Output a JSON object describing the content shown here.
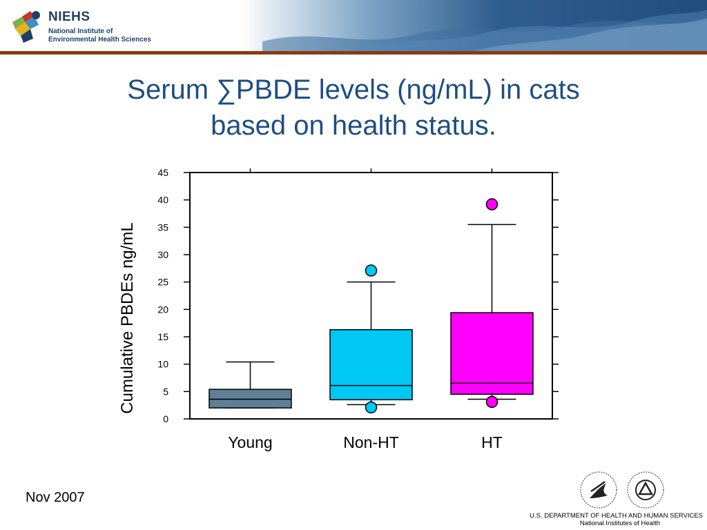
{
  "header": {
    "org_short": "NIEHS",
    "org_full": "National Institute of\nEnvironmental Health Sciences",
    "logo_icon": "niehs-logo-icon",
    "accent_color": "#1d4e82",
    "stripe_color": "#8a3b12"
  },
  "slide": {
    "title_line1": "Serum ∑PBDE levels (ng/mL) in cats",
    "title_line2": "based on health status."
  },
  "chart_data": {
    "type": "box",
    "title": "",
    "xlabel": "",
    "ylabel": "Cumulative PBDEs ng/mL",
    "ylim": [
      0,
      45
    ],
    "yticks": [
      0,
      5,
      10,
      15,
      20,
      25,
      30,
      35,
      40,
      45
    ],
    "grid": false,
    "categories": [
      "Young",
      "Non-HT",
      "HT"
    ],
    "boxes": [
      {
        "category": "Young",
        "color": "#5f7f97",
        "whisker_low": 2.0,
        "q1": 2.0,
        "median": 3.6,
        "q3": 5.4,
        "whisker_high": 10.4,
        "outliers": []
      },
      {
        "category": "Non-HT",
        "color": "#00c8f5",
        "whisker_low": 2.6,
        "q1": 3.5,
        "median": 6.1,
        "q3": 16.3,
        "whisker_high": 25.0,
        "outliers": [
          2.1,
          27.1
        ]
      },
      {
        "category": "HT",
        "color": "#ff00ff",
        "whisker_low": 3.6,
        "q1": 4.5,
        "median": 6.5,
        "q3": 19.4,
        "whisker_high": 35.5,
        "outliers": [
          3.1,
          39.2
        ]
      }
    ]
  },
  "footer": {
    "date": "Nov 2007",
    "dept": "U.S. DEPARTMENT OF HEALTH AND HUMAN SERVICES",
    "nih": "National Institutes of Health",
    "hhs_seal_icon": "hhs-seal-icon",
    "nih_seal_icon": "nih-seal-icon"
  }
}
